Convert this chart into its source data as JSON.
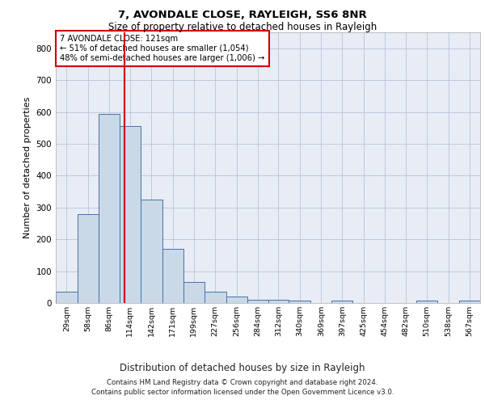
{
  "title1": "7, AVONDALE CLOSE, RAYLEIGH, SS6 8NR",
  "title2": "Size of property relative to detached houses in Rayleigh",
  "xlabel": "Distribution of detached houses by size in Rayleigh",
  "ylabel": "Number of detached properties",
  "footer1": "Contains HM Land Registry data © Crown copyright and database right 2024.",
  "footer2": "Contains public sector information licensed under the Open Government Licence v3.0.",
  "annotation_line1": "7 AVONDALE CLOSE: 121sqm",
  "annotation_line2": "← 51% of detached houses are smaller (1,054)",
  "annotation_line3": "48% of semi-detached houses are larger (1,006) →",
  "bar_color": "#c9d9e8",
  "bar_edge_color": "#4472a8",
  "grid_color": "#b8c4d8",
  "background_color": "#e8ecf5",
  "vline_color": "#cc0000",
  "vline_x": 121,
  "bin_edges": [
    29,
    58,
    86,
    114,
    142,
    171,
    199,
    227,
    256,
    284,
    312,
    340,
    369,
    397,
    425,
    454,
    482,
    510,
    538,
    567,
    595
  ],
  "bar_heights": [
    35,
    280,
    595,
    555,
    325,
    170,
    65,
    35,
    20,
    10,
    10,
    8,
    0,
    8,
    0,
    0,
    0,
    8,
    0,
    8
  ],
  "ylim": [
    0,
    850
  ],
  "yticks": [
    0,
    100,
    200,
    300,
    400,
    500,
    600,
    700,
    800
  ]
}
